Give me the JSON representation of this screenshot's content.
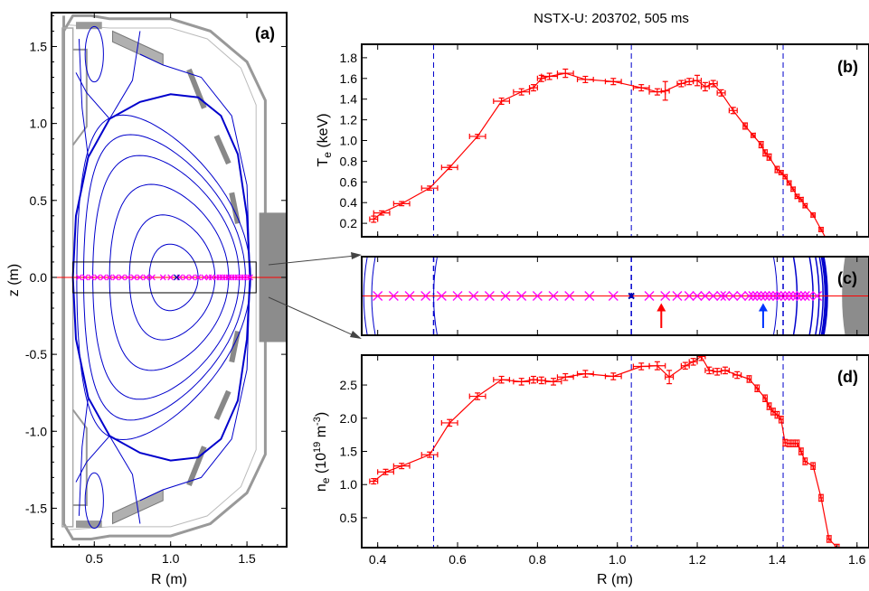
{
  "title": "NSTX-U: 203702, 505 ms",
  "colors": {
    "data": "#ff0000",
    "flux": "#0000cc",
    "marker": "#ff00ff",
    "wall": "#999999",
    "bluearrow": "#0033ff"
  },
  "chart_data": [
    {
      "id": "a",
      "panel_label": "(a)",
      "type": "diagram",
      "xlabel": "R (m)",
      "ylabel": "z (m)",
      "xlim": [
        0.22,
        1.76
      ],
      "ylim": [
        -1.75,
        1.72
      ],
      "xticks": [
        {
          "v": 0.5,
          "t": "0.5"
        },
        {
          "v": 1.0,
          "t": "1.0"
        },
        {
          "v": 1.5,
          "t": "1.5"
        }
      ],
      "yticks": [
        {
          "v": 1.5,
          "t": "1.5"
        },
        {
          "v": 1.0,
          "t": "1.0"
        },
        {
          "v": 0.5,
          "t": "0.5"
        },
        {
          "v": 0.0,
          "t": "0.0"
        },
        {
          "v": -0.5,
          "t": "-0.5"
        },
        {
          "v": -1.0,
          "t": "-1.0"
        },
        {
          "v": -1.5,
          "t": "-1.5"
        }
      ],
      "magnetic_axis": {
        "R": 1.04,
        "z": 0.0
      },
      "flux_surfaces": [
        {
          "R0": 1.02,
          "a": 0.16,
          "kappa": 1.35,
          "delta": 0.15
        },
        {
          "R0": 1.01,
          "a": 0.28,
          "kappa": 1.45,
          "delta": 0.22
        },
        {
          "R0": 0.99,
          "a": 0.39,
          "kappa": 1.55,
          "delta": 0.3
        },
        {
          "R0": 0.97,
          "a": 0.48,
          "kappa": 1.65,
          "delta": 0.36
        },
        {
          "R0": 0.96,
          "a": 0.53,
          "kappa": 1.75,
          "delta": 0.42
        },
        {
          "R0": 0.955,
          "a": 0.57,
          "kappa": 1.85,
          "delta": 0.47
        }
      ],
      "separatrix_R": [
        1.52,
        1.5,
        1.44,
        1.33,
        1.18,
        1.0,
        0.8,
        0.6,
        0.46,
        0.38,
        0.36,
        0.38,
        0.46,
        0.6,
        0.8,
        1.0,
        1.18,
        1.33,
        1.44,
        1.5,
        1.52
      ],
      "separatrix_z": [
        0.0,
        0.4,
        0.8,
        1.05,
        1.17,
        1.19,
        1.14,
        1.03,
        0.78,
        0.4,
        0.0,
        -0.4,
        -0.78,
        -1.03,
        -1.14,
        -1.19,
        -1.17,
        -1.05,
        -0.8,
        -0.4,
        0.0
      ],
      "chord_z": 0.0,
      "chord_markers_R": [
        0.4,
        0.44,
        0.48,
        0.52,
        0.56,
        0.6,
        0.64,
        0.68,
        0.72,
        0.76,
        0.8,
        0.84,
        0.88,
        0.95,
        1.0,
        1.06,
        1.1,
        1.14,
        1.18,
        1.22,
        1.25,
        1.27,
        1.3,
        1.32,
        1.34,
        1.36,
        1.38,
        1.4,
        1.42,
        1.44,
        1.46,
        1.48,
        1.5,
        1.52
      ],
      "zoom_box": {
        "R": [
          0.36,
          1.56
        ],
        "z": [
          -0.1,
          0.1
        ]
      }
    },
    {
      "id": "b",
      "panel_label": "(b)",
      "type": "line",
      "xlabel": "",
      "ylabel": "T_e (keV)",
      "xlim": [
        0.36,
        1.63
      ],
      "ylim": [
        0.07,
        1.93
      ],
      "yticks": [
        {
          "v": 0.2,
          "t": "0.2"
        },
        {
          "v": 0.4,
          "t": "0.4"
        },
        {
          "v": 0.6,
          "t": "0.6"
        },
        {
          "v": 0.8,
          "t": "0.8"
        },
        {
          "v": 1.0,
          "t": "1.0"
        },
        {
          "v": 1.2,
          "t": "1.2"
        },
        {
          "v": 1.4,
          "t": "1.4"
        },
        {
          "v": 1.6,
          "t": "1.6"
        },
        {
          "v": 1.8,
          "t": "1.8"
        }
      ],
      "vlines_R": [
        0.54,
        1.035,
        1.415
      ],
      "x": [
        0.39,
        0.41,
        0.46,
        0.53,
        0.58,
        0.65,
        0.71,
        0.76,
        0.79,
        0.81,
        0.83,
        0.87,
        0.92,
        0.99,
        1.06,
        1.1,
        1.12,
        1.16,
        1.18,
        1.2,
        1.22,
        1.24,
        1.26,
        1.29,
        1.32,
        1.34,
        1.36,
        1.37,
        1.38,
        1.4,
        1.41,
        1.42,
        1.43,
        1.44,
        1.45,
        1.46,
        1.47,
        1.49,
        1.51,
        1.53
      ],
      "y": [
        0.24,
        0.3,
        0.39,
        0.54,
        0.74,
        1.04,
        1.38,
        1.47,
        1.51,
        1.6,
        1.62,
        1.65,
        1.59,
        1.57,
        1.51,
        1.47,
        1.48,
        1.55,
        1.57,
        1.58,
        1.52,
        1.55,
        1.46,
        1.29,
        1.14,
        1.05,
        0.96,
        0.88,
        0.84,
        0.72,
        0.69,
        0.65,
        0.59,
        0.53,
        0.46,
        0.43,
        0.37,
        0.28,
        0.14,
        0.0
      ],
      "xerr": [
        0.01,
        0.02,
        0.02,
        0.02,
        0.02,
        0.02,
        0.02,
        0.02,
        0.01,
        0.01,
        0.02,
        0.02,
        0.02,
        0.02,
        0.02,
        0.02,
        0.01,
        0.01,
        0.01,
        0.01,
        0.01,
        0.01,
        0.01,
        0.01,
        0.005,
        0.005,
        0.005,
        0.005,
        0.005,
        0.005,
        0.005,
        0.005,
        0.005,
        0.005,
        0.005,
        0.005,
        0.005,
        0.005,
        0.005,
        0.005
      ],
      "yerr": [
        0.03,
        0.02,
        0.02,
        0.02,
        0.02,
        0.02,
        0.03,
        0.03,
        0.03,
        0.03,
        0.03,
        0.04,
        0.03,
        0.03,
        0.03,
        0.03,
        0.09,
        0.03,
        0.03,
        0.05,
        0.04,
        0.03,
        0.03,
        0.03,
        0.03,
        0.02,
        0.03,
        0.03,
        0.03,
        0.03,
        0.02,
        0.02,
        0.02,
        0.02,
        0.02,
        0.02,
        0.02,
        0.02,
        0.02,
        0.02
      ]
    },
    {
      "id": "c",
      "panel_label": "(c)",
      "type": "diagram",
      "xlim": [
        0.36,
        1.63
      ],
      "ylim": [
        -0.1,
        0.1
      ],
      "vlines_R": [
        0.54,
        1.035,
        1.415
      ],
      "magnetic_axis": {
        "R": 1.035,
        "z": 0.0
      },
      "flux_crossings_R": [
        0.365,
        0.385,
        0.54,
        1.4,
        1.45,
        1.49,
        1.505,
        1.515,
        1.52,
        1.523,
        1.526
      ],
      "chord_z": 0.0,
      "chord_markers_R": [
        0.4,
        0.44,
        0.48,
        0.52,
        0.56,
        0.6,
        0.64,
        0.68,
        0.72,
        0.76,
        0.8,
        0.84,
        0.88,
        0.93,
        0.99,
        1.08,
        1.12,
        1.15,
        1.18,
        1.2,
        1.22,
        1.24,
        1.26,
        1.27,
        1.29,
        1.31,
        1.33,
        1.34,
        1.35,
        1.36,
        1.37,
        1.38,
        1.39,
        1.4,
        1.41,
        1.42,
        1.43,
        1.44,
        1.45,
        1.46,
        1.47,
        1.48,
        1.5
      ],
      "arrows": [
        {
          "R": 1.11,
          "color": "#ff0000"
        },
        {
          "R": 1.365,
          "color": "#0033ff"
        }
      ]
    },
    {
      "id": "d",
      "panel_label": "(d)",
      "type": "line",
      "xlabel": "R (m)",
      "ylabel": "n_e (10^19 m^-3)",
      "xlim": [
        0.36,
        1.63
      ],
      "ylim": [
        0.05,
        2.95
      ],
      "xticks": [
        {
          "v": 0.4,
          "t": "0.4"
        },
        {
          "v": 0.6,
          "t": "0.6"
        },
        {
          "v": 0.8,
          "t": "0.8"
        },
        {
          "v": 1.0,
          "t": "1.0"
        },
        {
          "v": 1.2,
          "t": "1.2"
        },
        {
          "v": 1.4,
          "t": "1.4"
        },
        {
          "v": 1.6,
          "t": "1.6"
        }
      ],
      "yticks": [
        {
          "v": 0.5,
          "t": "0.5"
        },
        {
          "v": 1.0,
          "t": "1.0"
        },
        {
          "v": 1.5,
          "t": "1.5"
        },
        {
          "v": 2.0,
          "t": "2.0"
        },
        {
          "v": 2.5,
          "t": "2.5"
        }
      ],
      "vlines_R": [
        0.54,
        1.035,
        1.415
      ],
      "x": [
        0.39,
        0.42,
        0.46,
        0.53,
        0.58,
        0.65,
        0.71,
        0.76,
        0.79,
        0.81,
        0.84,
        0.87,
        0.92,
        0.99,
        1.06,
        1.1,
        1.13,
        1.17,
        1.19,
        1.21,
        1.23,
        1.25,
        1.27,
        1.3,
        1.33,
        1.35,
        1.37,
        1.38,
        1.39,
        1.4,
        1.41,
        1.42,
        1.43,
        1.44,
        1.45,
        1.46,
        1.47,
        1.49,
        1.51,
        1.53,
        1.55
      ],
      "y": [
        1.05,
        1.19,
        1.28,
        1.45,
        1.93,
        2.33,
        2.58,
        2.55,
        2.58,
        2.57,
        2.55,
        2.62,
        2.67,
        2.63,
        2.78,
        2.79,
        2.62,
        2.79,
        2.85,
        2.93,
        2.72,
        2.7,
        2.72,
        2.65,
        2.59,
        2.45,
        2.3,
        2.18,
        2.1,
        2.05,
        1.98,
        1.63,
        1.62,
        1.62,
        1.62,
        1.5,
        1.35,
        1.28,
        0.8,
        0.18,
        0.05
      ],
      "xerr": [
        0.01,
        0.02,
        0.02,
        0.02,
        0.02,
        0.02,
        0.02,
        0.02,
        0.01,
        0.01,
        0.02,
        0.02,
        0.02,
        0.02,
        0.02,
        0.02,
        0.01,
        0.01,
        0.01,
        0.01,
        0.01,
        0.01,
        0.01,
        0.01,
        0.005,
        0.005,
        0.005,
        0.005,
        0.005,
        0.005,
        0.005,
        0.005,
        0.005,
        0.005,
        0.005,
        0.005,
        0.005,
        0.005,
        0.005,
        0.005,
        0.005
      ],
      "yerr": [
        0.04,
        0.04,
        0.04,
        0.04,
        0.05,
        0.05,
        0.05,
        0.05,
        0.05,
        0.05,
        0.05,
        0.05,
        0.05,
        0.05,
        0.05,
        0.06,
        0.1,
        0.05,
        0.05,
        0.06,
        0.05,
        0.05,
        0.05,
        0.05,
        0.05,
        0.05,
        0.05,
        0.05,
        0.05,
        0.05,
        0.05,
        0.05,
        0.05,
        0.05,
        0.05,
        0.05,
        0.05,
        0.05,
        0.05,
        0.05,
        0.05
      ]
    }
  ]
}
